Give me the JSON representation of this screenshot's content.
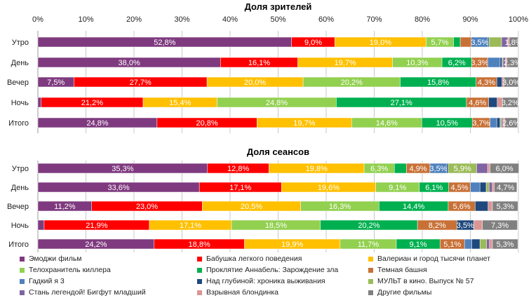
{
  "series": [
    {
      "name": "Эмоджи фильм",
      "color": "#7F3A7F"
    },
    {
      "name": "Бабушка легкого поведения",
      "color": "#FF0000"
    },
    {
      "name": "Валериан и город тысячи планет",
      "color": "#FFC000"
    },
    {
      "name": "Телохранитель киллера",
      "color": "#92D050"
    },
    {
      "name": "Проклятие Аннабель: Зарождение зла",
      "color": "#00B050"
    },
    {
      "name": "Темная башня",
      "color": "#C87137"
    },
    {
      "name": "Гадкий я 3",
      "color": "#4F81BD"
    },
    {
      "name": "Над глубиной: хроника выживания",
      "color": "#1F497D"
    },
    {
      "name": "МУЛЬТ в кино. Выпуск № 57",
      "color": "#9BBB59"
    },
    {
      "name": "Стань легендой! Бигфут младший",
      "color": "#8064A2"
    },
    {
      "name": "Взрывная блондинка",
      "color": "#D99694"
    },
    {
      "name": "Другие фильмы",
      "color": "#808080"
    }
  ],
  "chart_data": [
    {
      "type": "bar",
      "stacked": "100%",
      "orientation": "horizontal",
      "title": "Доля зрителей",
      "categories": [
        "Утро",
        "День",
        "Вечер",
        "Ночь",
        "Итого"
      ],
      "xlim": [
        0,
        100
      ],
      "ticks": [
        "0%",
        "10%",
        "20%",
        "30%",
        "40%",
        "50%",
        "60%",
        "70%",
        "80%",
        "90%",
        "100%"
      ],
      "grid": true,
      "legend": "bottom",
      "values": [
        [
          52.8,
          9.0,
          19.0,
          5.7,
          1.4,
          2.3,
          3.5,
          0.2,
          2.6,
          1.3,
          0.3,
          1.8
        ],
        [
          38.0,
          16.1,
          19.7,
          10.3,
          6.2,
          3.3,
          2.6,
          0.4,
          0.2,
          0.5,
          0.3,
          2.3
        ],
        [
          7.5,
          27.7,
          20.0,
          20.2,
          15.8,
          4.3,
          0,
          1.1,
          0,
          0,
          0.4,
          3.0
        ],
        [
          0.7,
          21.2,
          15.4,
          24.8,
          27.1,
          4.6,
          0,
          1.8,
          0,
          0,
          1.1,
          3.2
        ],
        [
          24.8,
          20.8,
          19.7,
          14.6,
          10.5,
          3.7,
          1.4,
          0.7,
          0.3,
          0.3,
          0.4,
          2.6
        ]
      ]
    },
    {
      "type": "bar",
      "stacked": "100%",
      "orientation": "horizontal",
      "title": "Доля сеансов",
      "categories": [
        "Утро",
        "День",
        "Вечер",
        "Ночь",
        "Итого"
      ],
      "xlim": [
        0,
        100
      ],
      "grid": true,
      "legend": "bottom",
      "values": [
        [
          35.3,
          12.8,
          19.8,
          6.3,
          2.5,
          4.9,
          3.5,
          0.3,
          5.9,
          2.3,
          0.5,
          6.0
        ],
        [
          33.6,
          17.1,
          19.6,
          9.1,
          6.1,
          4.5,
          2.0,
          1.3,
          0.6,
          0.7,
          0.4,
          4.7
        ],
        [
          11.2,
          23.0,
          20.5,
          16.3,
          14.4,
          5.6,
          0,
          2.7,
          0,
          0,
          0.9,
          5.3
        ],
        [
          1.3,
          21.9,
          17.1,
          18.5,
          20.2,
          8.2,
          0,
          3.5,
          0,
          0,
          1.8,
          7.3
        ],
        [
          24.2,
          18.8,
          19.9,
          11.7,
          9.1,
          5.1,
          1.5,
          1.7,
          1.4,
          0.6,
          0.6,
          5.3
        ]
      ]
    }
  ]
}
